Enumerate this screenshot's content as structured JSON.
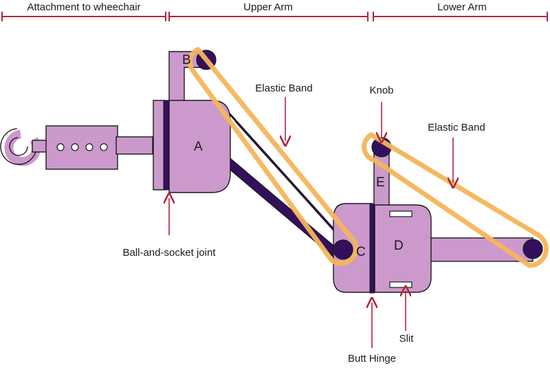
{
  "sections": {
    "attachment": "Attachment to wheechair",
    "upper_arm": "Upper Arm",
    "lower_arm": "Lower Arm"
  },
  "parts": {
    "a": "A",
    "b": "B",
    "c": "C",
    "d": "D",
    "e": "E"
  },
  "labels": {
    "elastic_band_upper": "Elastic Band",
    "elastic_band_lower": "Elastic Band",
    "knob": "Knob",
    "ball_socket": "Ball-and-socket joint",
    "butt_hinge": "Butt Hinge",
    "slit": "Slit"
  },
  "colors": {
    "part_fill": "#cc99cc",
    "outline": "#1a1a1a",
    "dark_link": "#33105e",
    "band": "#f5b55a",
    "arrow": "#b0243a"
  }
}
